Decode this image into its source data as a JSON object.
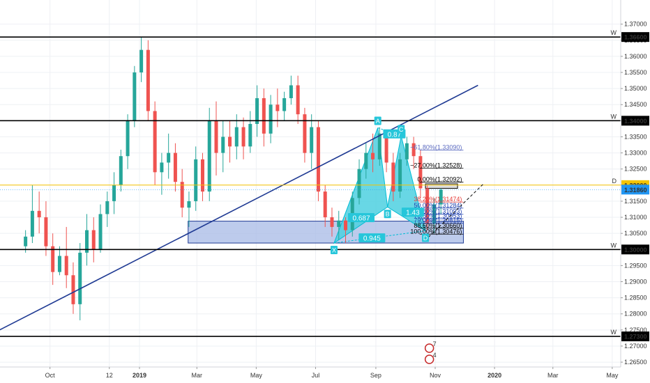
{
  "chart_data": {
    "type": "candlestick",
    "instrument_prices": {
      "y_ticks": [
        "1.37000",
        "1.36500",
        "1.36000",
        "1.35500",
        "1.35000",
        "1.34500",
        "1.34000",
        "1.33500",
        "1.33000",
        "1.32500",
        "1.32000",
        "1.31500",
        "1.31000",
        "1.30500",
        "1.30000",
        "1.29500",
        "1.29000",
        "1.28500",
        "1.28000",
        "1.27500",
        "1.27000",
        "1.26500"
      ],
      "ylim": [
        1.2635,
        1.3775
      ]
    },
    "x_ticks": [
      "Oct",
      "12",
      "2019",
      "Mar",
      "May",
      "Jul",
      "Sep",
      "Nov",
      "2020",
      "Mar",
      "May"
    ],
    "price_series": [
      {
        "d": "2018-09-03",
        "o": 1.301,
        "h": 1.306,
        "l": 1.299,
        "c": 1.304
      },
      {
        "d": "2018-09-10",
        "o": 1.304,
        "h": 1.32,
        "l": 1.302,
        "c": 1.312
      },
      {
        "d": "2018-09-17",
        "o": 1.312,
        "h": 1.318,
        "l": 1.305,
        "c": 1.31
      },
      {
        "d": "2018-09-24",
        "o": 1.31,
        "h": 1.315,
        "l": 1.298,
        "c": 1.301
      },
      {
        "d": "2018-10-01",
        "o": 1.301,
        "h": 1.305,
        "l": 1.289,
        "c": 1.293
      },
      {
        "d": "2018-10-08",
        "o": 1.293,
        "h": 1.301,
        "l": 1.292,
        "c": 1.298
      },
      {
        "d": "2018-10-15",
        "o": 1.298,
        "h": 1.307,
        "l": 1.288,
        "c": 1.292
      },
      {
        "d": "2018-10-22",
        "o": 1.292,
        "h": 1.296,
        "l": 1.28,
        "c": 1.283
      },
      {
        "d": "2018-10-29",
        "o": 1.283,
        "h": 1.302,
        "l": 1.278,
        "c": 1.299
      },
      {
        "d": "2018-11-05",
        "o": 1.299,
        "h": 1.311,
        "l": 1.295,
        "c": 1.306
      },
      {
        "d": "2018-11-12",
        "o": 1.306,
        "h": 1.31,
        "l": 1.296,
        "c": 1.3
      },
      {
        "d": "2018-11-19",
        "o": 1.3,
        "h": 1.314,
        "l": 1.299,
        "c": 1.311
      },
      {
        "d": "2018-11-26",
        "o": 1.311,
        "h": 1.318,
        "l": 1.307,
        "c": 1.315
      },
      {
        "d": "2018-12-03",
        "o": 1.315,
        "h": 1.324,
        "l": 1.311,
        "c": 1.32
      },
      {
        "d": "2018-12-10",
        "o": 1.32,
        "h": 1.331,
        "l": 1.318,
        "c": 1.329
      },
      {
        "d": "2018-12-17",
        "o": 1.329,
        "h": 1.342,
        "l": 1.325,
        "c": 1.34
      },
      {
        "d": "2018-12-24",
        "o": 1.34,
        "h": 1.357,
        "l": 1.338,
        "c": 1.355
      },
      {
        "d": "2018-12-31",
        "o": 1.355,
        "h": 1.366,
        "l": 1.352,
        "c": 1.362
      },
      {
        "d": "2019-01-07",
        "o": 1.362,
        "h": 1.365,
        "l": 1.34,
        "c": 1.343
      },
      {
        "d": "2019-01-14",
        "o": 1.343,
        "h": 1.346,
        "l": 1.32,
        "c": 1.324
      },
      {
        "d": "2019-01-21",
        "o": 1.324,
        "h": 1.33,
        "l": 1.317,
        "c": 1.327
      },
      {
        "d": "2019-01-28",
        "o": 1.327,
        "h": 1.336,
        "l": 1.322,
        "c": 1.33
      },
      {
        "d": "2019-02-04",
        "o": 1.33,
        "h": 1.333,
        "l": 1.318,
        "c": 1.321
      },
      {
        "d": "2019-02-11",
        "o": 1.321,
        "h": 1.325,
        "l": 1.31,
        "c": 1.313
      },
      {
        "d": "2019-02-18",
        "o": 1.313,
        "h": 1.318,
        "l": 1.307,
        "c": 1.315
      },
      {
        "d": "2019-02-25",
        "o": 1.315,
        "h": 1.332,
        "l": 1.312,
        "c": 1.328
      },
      {
        "d": "2019-03-04",
        "o": 1.328,
        "h": 1.33,
        "l": 1.315,
        "c": 1.318
      },
      {
        "d": "2019-03-11",
        "o": 1.318,
        "h": 1.344,
        "l": 1.315,
        "c": 1.34
      },
      {
        "d": "2019-03-18",
        "o": 1.34,
        "h": 1.346,
        "l": 1.323,
        "c": 1.33
      },
      {
        "d": "2019-03-25",
        "o": 1.33,
        "h": 1.34,
        "l": 1.324,
        "c": 1.335
      },
      {
        "d": "2019-04-01",
        "o": 1.335,
        "h": 1.34,
        "l": 1.327,
        "c": 1.332
      },
      {
        "d": "2019-04-08",
        "o": 1.332,
        "h": 1.342,
        "l": 1.328,
        "c": 1.338
      },
      {
        "d": "2019-04-15",
        "o": 1.338,
        "h": 1.341,
        "l": 1.328,
        "c": 1.332
      },
      {
        "d": "2019-04-22",
        "o": 1.332,
        "h": 1.343,
        "l": 1.33,
        "c": 1.339
      },
      {
        "d": "2019-04-29",
        "o": 1.339,
        "h": 1.351,
        "l": 1.335,
        "c": 1.347
      },
      {
        "d": "2019-05-06",
        "o": 1.347,
        "h": 1.35,
        "l": 1.332,
        "c": 1.336
      },
      {
        "d": "2019-05-13",
        "o": 1.336,
        "h": 1.348,
        "l": 1.333,
        "c": 1.345
      },
      {
        "d": "2019-05-20",
        "o": 1.345,
        "h": 1.35,
        "l": 1.338,
        "c": 1.343
      },
      {
        "d": "2019-05-27",
        "o": 1.343,
        "h": 1.349,
        "l": 1.34,
        "c": 1.347
      },
      {
        "d": "2019-06-03",
        "o": 1.347,
        "h": 1.354,
        "l": 1.345,
        "c": 1.351
      },
      {
        "d": "2019-06-10",
        "o": 1.351,
        "h": 1.354,
        "l": 1.339,
        "c": 1.342
      },
      {
        "d": "2019-06-17",
        "o": 1.342,
        "h": 1.344,
        "l": 1.327,
        "c": 1.33
      },
      {
        "d": "2019-06-24",
        "o": 1.33,
        "h": 1.342,
        "l": 1.325,
        "c": 1.338
      },
      {
        "d": "2019-07-01",
        "o": 1.338,
        "h": 1.34,
        "l": 1.315,
        "c": 1.318
      },
      {
        "d": "2019-07-08",
        "o": 1.318,
        "h": 1.32,
        "l": 1.307,
        "c": 1.31
      },
      {
        "d": "2019-07-15",
        "o": 1.31,
        "h": 1.313,
        "l": 1.304,
        "c": 1.307
      },
      {
        "d": "2019-07-22",
        "o": 1.307,
        "h": 1.312,
        "l": 1.303,
        "c": 1.309
      },
      {
        "d": "2019-07-29",
        "o": 1.309,
        "h": 1.31,
        "l": 1.302,
        "c": 1.306
      },
      {
        "d": "2019-08-05",
        "o": 1.306,
        "h": 1.318,
        "l": 1.304,
        "c": 1.316
      },
      {
        "d": "2019-08-12",
        "o": 1.316,
        "h": 1.328,
        "l": 1.314,
        "c": 1.325
      },
      {
        "d": "2019-08-19",
        "o": 1.325,
        "h": 1.333,
        "l": 1.322,
        "c": 1.33
      },
      {
        "d": "2019-08-26",
        "o": 1.33,
        "h": 1.336,
        "l": 1.324,
        "c": 1.328
      },
      {
        "d": "2019-09-02",
        "o": 1.328,
        "h": 1.338,
        "l": 1.326,
        "c": 1.336
      },
      {
        "d": "2019-09-09",
        "o": 1.336,
        "h": 1.337,
        "l": 1.324,
        "c": 1.327
      },
      {
        "d": "2019-09-16",
        "o": 1.327,
        "h": 1.33,
        "l": 1.315,
        "c": 1.318
      },
      {
        "d": "2019-09-23",
        "o": 1.318,
        "h": 1.33,
        "l": 1.316,
        "c": 1.328
      },
      {
        "d": "2019-09-30",
        "o": 1.328,
        "h": 1.335,
        "l": 1.326,
        "c": 1.333
      },
      {
        "d": "2019-10-07",
        "o": 1.333,
        "h": 1.335,
        "l": 1.325,
        "c": 1.329
      },
      {
        "d": "2019-10-14",
        "o": 1.329,
        "h": 1.331,
        "l": 1.316,
        "c": 1.319
      },
      {
        "d": "2019-10-21",
        "o": 1.319,
        "h": 1.32,
        "l": 1.306,
        "c": 1.308
      },
      {
        "d": "2019-10-28",
        "o": 1.308,
        "h": 1.316,
        "l": 1.305,
        "c": 1.314
      },
      {
        "d": "2019-11-04",
        "o": 1.314,
        "h": 1.319,
        "l": 1.311,
        "c": 1.3186
      }
    ],
    "horizontal_levels": [
      {
        "price": 1.366,
        "label": "1.36600",
        "tag": "W",
        "color": "#000000"
      },
      {
        "price": 1.34,
        "label": "1.34000",
        "tag": "W",
        "color": "#000000"
      },
      {
        "price": 1.32,
        "label": "1.32000",
        "tag": "D",
        "color": "#f5c400"
      },
      {
        "price": 1.3,
        "label": "1.30000",
        "tag": "W",
        "color": "#000000"
      },
      {
        "price": 1.273,
        "label": "1.27300",
        "tag": "W",
        "color": "#000000"
      }
    ],
    "current_price": {
      "price": 1.3186,
      "label": "1.31860",
      "color": "#2196f3"
    },
    "trendline": {
      "from": {
        "d": "2018-07-01",
        "p": 1.2688
      },
      "to": {
        "d": "2019-12-15",
        "p": 1.351
      },
      "color": "#1f3a93"
    },
    "zones": [
      {
        "from": "2019-02-20",
        "to": "2019-11-30",
        "top": 1.3088,
        "bottom": 1.302,
        "fill": "#a7b9e6",
        "stroke": "#1f3a93"
      },
      {
        "from": "2019-10-22",
        "to": "2019-11-24",
        "top": 1.3204,
        "bottom": 1.319,
        "fill": "#d9d9d9",
        "stroke": "#000000"
      }
    ],
    "harmonic_pattern": {
      "points": [
        {
          "label": "X",
          "d": "2019-07-20",
          "p": 1.302
        },
        {
          "label": "A",
          "d": "2019-09-03",
          "p": 1.3378
        },
        {
          "label": "B",
          "d": "2019-09-13",
          "p": 1.3132
        },
        {
          "label": "C",
          "d": "2019-09-27",
          "p": 1.3352
        },
        {
          "label": "D",
          "d": "2019-10-22",
          "p": 1.3058
        }
      ],
      "ratios": [
        {
          "text": "0.687",
          "d": "2019-08-17",
          "p": 1.3098
        },
        {
          "text": "0.87",
          "d": "2019-09-20",
          "p": 1.3358
        },
        {
          "text": "1.43",
          "d": "2019-10-09",
          "p": 1.3115
        },
        {
          "text": "0.945",
          "d": "2019-08-28",
          "p": 1.3035
        }
      ],
      "fill": "#4dd0e1",
      "stroke": "#00bcd4"
    },
    "fib_levels": [
      {
        "label": "−61.80%(1.33090)",
        "price": 1.3309,
        "color": "#5c6bc0"
      },
      {
        "label": "−27.00%(1.32528)",
        "price": 1.32528,
        "color": "#000000"
      },
      {
        "label": "0.00%(1.32092)",
        "price": 1.32092,
        "color": "#000000"
      },
      {
        "label": "38.20%(1.31474)",
        "price": 1.31474,
        "color": "#e53935"
      },
      {
        "label": "50.00%(1.31284)",
        "price": 1.31284,
        "color": "#1e40af"
      },
      {
        "label": "61.80%(1.31093)",
        "price": 1.31093,
        "color": "#1e40af"
      },
      {
        "label": "70.50%(1.30953)",
        "price": 1.30953,
        "color": "#1e40af"
      },
      {
        "label": "79.00%(1.30815)",
        "price": 1.30815,
        "color": "#1e40af"
      },
      {
        "label": "88.60%(1.30660)",
        "price": 1.3066,
        "color": "#000000"
      },
      {
        "label": "100.00%(1.30476)",
        "price": 1.30476,
        "color": "#000000"
      }
    ],
    "projection": {
      "from": {
        "d": "2019-10-25",
        "p": 1.3038
      },
      "to": {
        "d": "2019-12-20",
        "p": 1.3202
      }
    },
    "icons": [
      "economic-event-icon"
    ],
    "event_badge_numbers": [
      "7",
      "4"
    ],
    "grid": true,
    "price_axis_position": "right"
  }
}
